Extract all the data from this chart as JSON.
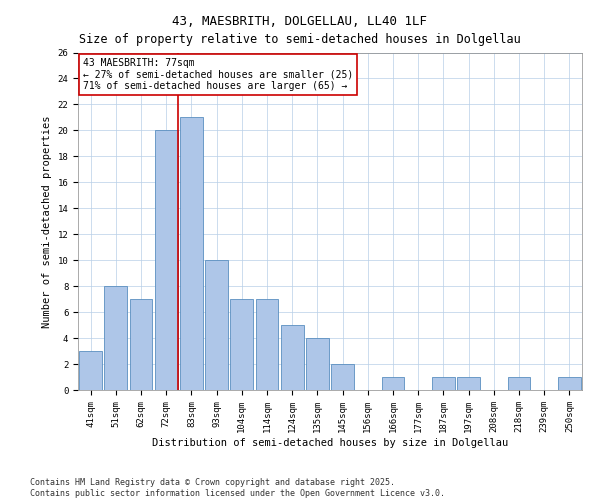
{
  "title": "43, MAESBRITH, DOLGELLAU, LL40 1LF",
  "subtitle": "Size of property relative to semi-detached houses in Dolgellau",
  "xlabel": "Distribution of semi-detached houses by size in Dolgellau",
  "ylabel": "Number of semi-detached properties",
  "categories": [
    "41sqm",
    "51sqm",
    "62sqm",
    "72sqm",
    "83sqm",
    "93sqm",
    "104sqm",
    "114sqm",
    "124sqm",
    "135sqm",
    "145sqm",
    "156sqm",
    "166sqm",
    "177sqm",
    "187sqm",
    "197sqm",
    "208sqm",
    "218sqm",
    "239sqm",
    "250sqm"
  ],
  "values": [
    3,
    8,
    7,
    20,
    21,
    10,
    7,
    7,
    5,
    4,
    2,
    0,
    1,
    0,
    1,
    1,
    0,
    1,
    0,
    1
  ],
  "bar_color": "#aec6e8",
  "bar_edge_color": "#5a8fc0",
  "vline_x_index": 3,
  "vline_color": "#cc0000",
  "annotation_title": "43 MAESBRITH: 77sqm",
  "annotation_line2": "← 27% of semi-detached houses are smaller (25)",
  "annotation_line3": "71% of semi-detached houses are larger (65) →",
  "annotation_box_color": "#cc0000",
  "ylim": [
    0,
    26
  ],
  "yticks": [
    0,
    2,
    4,
    6,
    8,
    10,
    12,
    14,
    16,
    18,
    20,
    22,
    24,
    26
  ],
  "footnote": "Contains HM Land Registry data © Crown copyright and database right 2025.\nContains public sector information licensed under the Open Government Licence v3.0.",
  "title_fontsize": 9,
  "subtitle_fontsize": 8.5,
  "axis_fontsize": 7.5,
  "tick_fontsize": 6.5,
  "annotation_fontsize": 7,
  "footnote_fontsize": 6
}
